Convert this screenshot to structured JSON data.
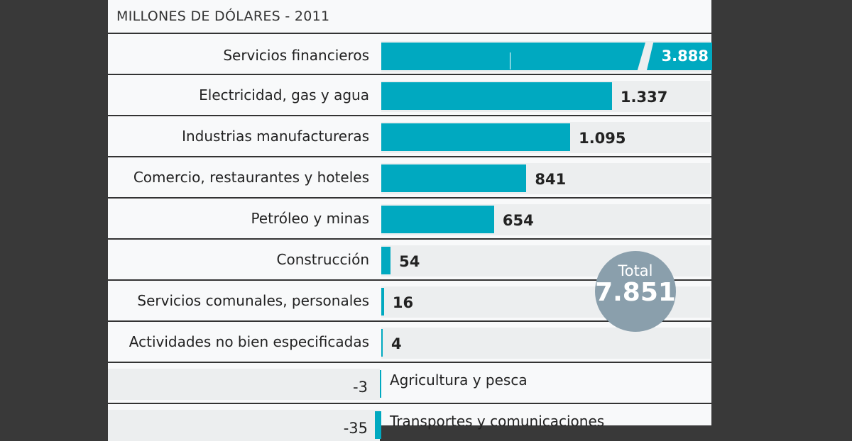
{
  "chart_data": {
    "type": "bar",
    "orientation": "horizontal",
    "subtitle": "MILLONES DE DÓLARES - 2011",
    "categories": [
      "Servicios financieros",
      "Electricidad, gas y agua",
      "Industrias manufactureras",
      "Comercio, restaurantes y hoteles",
      "Petróleo y minas",
      "Construcción",
      "Servicios comunales, personales",
      "Actividades no bien especificadas",
      "Agricultura y pesca",
      "Transportes y comunicaciones"
    ],
    "values": [
      3888,
      1337,
      1095,
      841,
      654,
      54,
      16,
      4,
      -3,
      -35
    ],
    "value_labels": [
      "3.888",
      "1.337",
      "1.095",
      "841",
      "654",
      "54",
      "16",
      "4",
      "-3",
      "-35"
    ],
    "broken_axis_bar": "Servicios financieros",
    "total_label": "Total",
    "total_value": "7.851",
    "colors": {
      "bar": "#00a9c0",
      "total_circle": "#8a9fac",
      "background": "#f8f9fa"
    }
  }
}
